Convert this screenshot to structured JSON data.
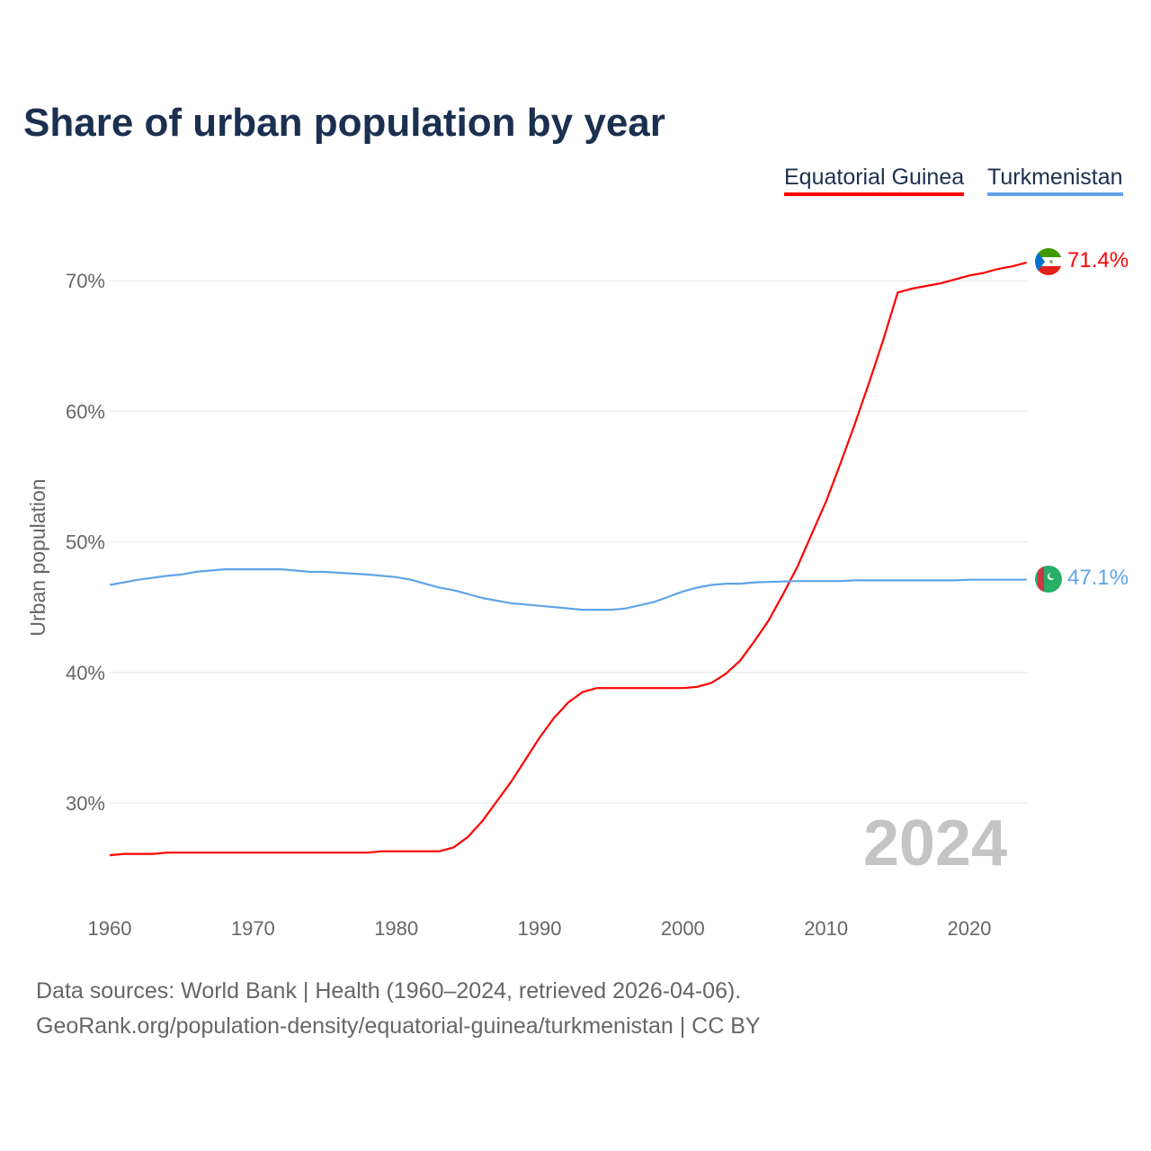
{
  "chart_data": {
    "type": "line",
    "title": "Share of urban population by year",
    "ylabel": "Urban population",
    "xlabel": "",
    "xlim": [
      1960,
      2024
    ],
    "ylim": [
      23,
      74
    ],
    "yticks": [
      30,
      40,
      50,
      60,
      70
    ],
    "ytick_labels": [
      "30%",
      "40%",
      "50%",
      "60%",
      "70%"
    ],
    "xticks": [
      1960,
      1970,
      1980,
      1990,
      2000,
      2010,
      2020
    ],
    "xtick_labels": [
      "1960",
      "1970",
      "1980",
      "1990",
      "2000",
      "2010",
      "2020"
    ],
    "grid": true,
    "legend_position": "top-right",
    "year_watermark": "2024",
    "series": [
      {
        "name": "Equatorial Guinea",
        "color": "#ff0000",
        "end_label": "71.4%",
        "x": [
          1960,
          1961,
          1963,
          1964,
          1970,
          1978,
          1979,
          1983,
          1984,
          1985,
          1986,
          1987,
          1988,
          1989,
          1990,
          1991,
          1992,
          1993,
          1994,
          2000,
          2001,
          2002,
          2003,
          2004,
          2005,
          2006,
          2007,
          2008,
          2009,
          2010,
          2011,
          2012,
          2013,
          2014,
          2015,
          2016,
          2017,
          2018,
          2019,
          2020,
          2021,
          2022,
          2023,
          2024
        ],
        "values": [
          26.0,
          26.1,
          26.1,
          26.2,
          26.2,
          26.2,
          26.3,
          26.3,
          26.6,
          27.4,
          28.6,
          30.1,
          31.6,
          33.3,
          35.0,
          36.5,
          37.7,
          38.5,
          38.8,
          38.8,
          38.9,
          39.2,
          39.9,
          40.9,
          42.4,
          44.0,
          46.0,
          48.1,
          50.6,
          53.1,
          56.0,
          59.0,
          62.2,
          65.5,
          69.1,
          69.4,
          69.6,
          69.8,
          70.1,
          70.4,
          70.6,
          70.9,
          71.1,
          71.4
        ]
      },
      {
        "name": "Turkmenistan",
        "color": "#5ea4e8",
        "end_label": "47.1%",
        "x": [
          1960,
          1962,
          1964,
          1965,
          1966,
          1968,
          1972,
          1974,
          1975,
          1978,
          1980,
          1981,
          1983,
          1984,
          1986,
          1988,
          1990,
          1993,
          1995,
          1996,
          1998,
          1999,
          2000,
          2001,
          2002,
          2003,
          2004,
          2005,
          2008,
          2011,
          2012,
          2019,
          2020,
          2024
        ],
        "values": [
          46.7,
          47.1,
          47.4,
          47.5,
          47.7,
          47.9,
          47.9,
          47.7,
          47.7,
          47.5,
          47.3,
          47.1,
          46.5,
          46.3,
          45.7,
          45.3,
          45.1,
          44.8,
          44.8,
          44.9,
          45.4,
          45.8,
          46.2,
          46.5,
          46.7,
          46.8,
          46.8,
          46.9,
          47.0,
          47.0,
          47.05,
          47.05,
          47.1,
          47.1
        ]
      }
    ]
  },
  "footer": {
    "line1": "Data sources: World Bank | Health (1960–2024, retrieved 2026-04-06).",
    "line2": "GeoRank.org/population-density/equatorial-guinea/turkmenistan | CC BY"
  }
}
